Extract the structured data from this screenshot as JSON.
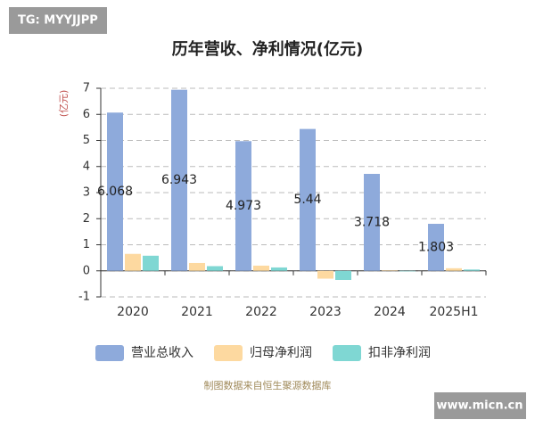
{
  "chart_data": {
    "type": "bar",
    "title": "历年营收、净利情况(亿元)",
    "y_label": "(亿元)",
    "categories": [
      "2020",
      "2021",
      "2022",
      "2023",
      "2024",
      "2025H1"
    ],
    "series": [
      {
        "name": "营业总收入",
        "color": "#8eaadb",
        "values": [
          6.068,
          6.943,
          4.973,
          5.44,
          3.718,
          1.803
        ]
      },
      {
        "name": "归母净利润",
        "color": "#fdd9a0",
        "values": [
          0.65,
          0.3,
          0.2,
          -0.3,
          0.02,
          0.1
        ]
      },
      {
        "name": "扣非净利润",
        "color": "#7fd7d3",
        "values": [
          0.58,
          0.18,
          0.13,
          -0.35,
          -0.02,
          0.05
        ]
      }
    ],
    "labeled_series": 0,
    "ylim": [
      -1,
      7
    ],
    "yticks": [
      -1,
      0,
      1,
      2,
      3,
      4,
      5,
      6,
      7
    ],
    "grid": true,
    "source": "制图数据来自恒生聚源数据库",
    "watermarks": [
      "TG: MYYJJPP",
      "www.micn.cn"
    ]
  }
}
